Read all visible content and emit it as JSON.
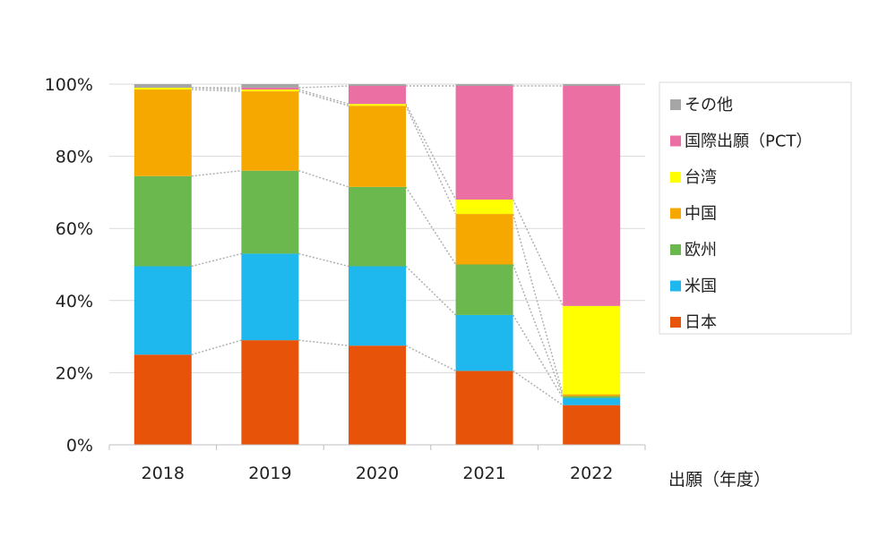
{
  "chart_data": {
    "type": "bar",
    "stacked": true,
    "percent": true,
    "categories": [
      "2018",
      "2019",
      "2020",
      "2021",
      "2022"
    ],
    "series": [
      {
        "name": "日本",
        "color": "#E8530A",
        "values": [
          25,
          29,
          27.5,
          20.5,
          11
        ]
      },
      {
        "name": "米国",
        "color": "#1FB8EE",
        "values": [
          24.5,
          24,
          22,
          15.5,
          2
        ]
      },
      {
        "name": "欧州",
        "color": "#6BB84F",
        "values": [
          25,
          23,
          22,
          14,
          0.5
        ]
      },
      {
        "name": "中国",
        "color": "#F6A800",
        "values": [
          24,
          22,
          22.5,
          14,
          0.5
        ]
      },
      {
        "name": "台湾",
        "color": "#FFFF00",
        "values": [
          0.5,
          0.5,
          0.5,
          4,
          24.5
        ]
      },
      {
        "name": "国際出願（PCT）",
        "color": "#EC6FA3",
        "values": [
          0,
          0.5,
          5,
          31.5,
          61
        ]
      },
      {
        "name": "その他",
        "color": "#A6A6A6",
        "values": [
          1,
          1,
          0.5,
          0.5,
          0.5
        ]
      }
    ],
    "ylim": [
      0,
      100
    ],
    "yticks": [
      "0%",
      "20%",
      "40%",
      "60%",
      "80%",
      "100%"
    ],
    "ytick_values": [
      0,
      20,
      40,
      60,
      80,
      100
    ],
    "xlabel": "出願（年度）",
    "ylabel": "",
    "grid": true,
    "legend_position": "right",
    "series_lines": true
  }
}
